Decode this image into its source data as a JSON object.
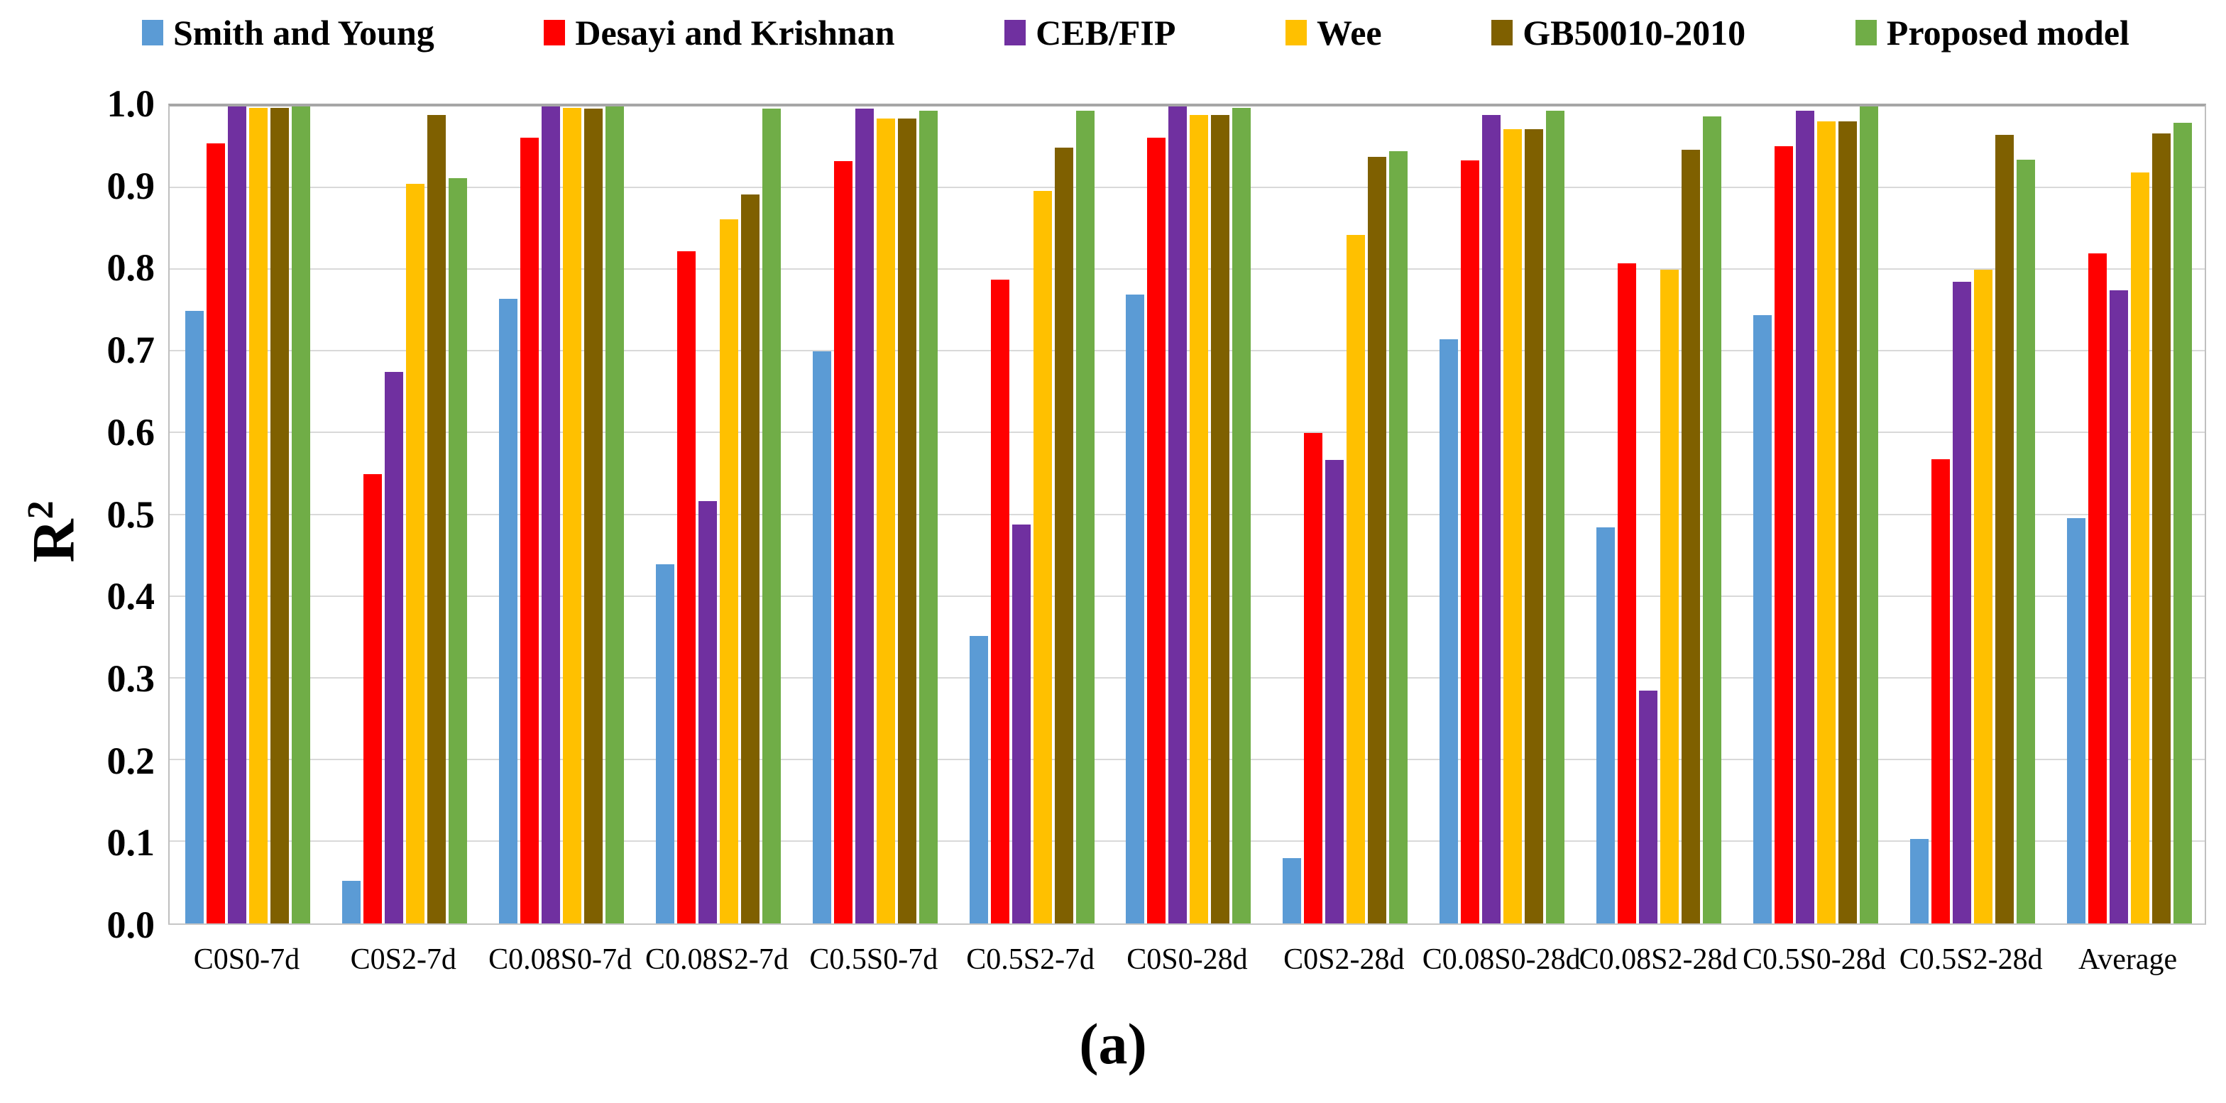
{
  "figure": {
    "caption": "(a)"
  },
  "chart_data": {
    "type": "bar",
    "title": "",
    "xlabel": "",
    "ylabel": "R²",
    "ylabel_base": "R",
    "ylabel_sup": "2",
    "ylim": [
      0.0,
      1.0
    ],
    "ytick_step": 0.1,
    "ytick_labels": [
      "0.0",
      "0.1",
      "0.2",
      "0.3",
      "0.4",
      "0.5",
      "0.6",
      "0.7",
      "0.8",
      "0.9",
      "1.0"
    ],
    "grid": true,
    "legend_position": "top",
    "categories": [
      "C0S0-7d",
      "C0S2-7d",
      "C0.08S0-7d",
      "C0.08S2-7d",
      "C0.5S0-7d",
      "C0.5S2-7d",
      "C0S0-28d",
      "C0S2-28d",
      "C0.08S0-28d",
      "C0.08S2-28d",
      "C0.5S0-28d",
      "C0.5S2-28d",
      "Average"
    ],
    "series": [
      {
        "name": "Smith and Young",
        "color": "#5B9BD5",
        "values": [
          0.75,
          0.052,
          0.765,
          0.44,
          0.7,
          0.352,
          0.77,
          0.08,
          0.715,
          0.485,
          0.745,
          0.103,
          0.496
        ]
      },
      {
        "name": "Desayi and Krishnan",
        "color": "#FF0000",
        "values": [
          0.955,
          0.55,
          0.962,
          0.823,
          0.933,
          0.788,
          0.962,
          0.6,
          0.934,
          0.808,
          0.951,
          0.568,
          0.82
        ]
      },
      {
        "name": "CEB/FIP",
        "color": "#7030A0",
        "values": [
          1.0,
          0.675,
          1.0,
          0.517,
          0.997,
          0.488,
          1.0,
          0.567,
          0.99,
          0.285,
          0.995,
          0.785,
          0.775
        ]
      },
      {
        "name": "Wee",
        "color": "#FFC000",
        "values": [
          0.998,
          0.905,
          0.998,
          0.862,
          0.985,
          0.897,
          0.99,
          0.843,
          0.972,
          0.8,
          0.982,
          0.8,
          0.919
        ]
      },
      {
        "name": "GB50010-2010",
        "color": "#7F6000",
        "values": [
          0.998,
          0.99,
          0.997,
          0.892,
          0.985,
          0.95,
          0.99,
          0.938,
          0.972,
          0.947,
          0.982,
          0.965,
          0.967
        ]
      },
      {
        "name": "Proposed model",
        "color": "#70AD47",
        "values": [
          1.0,
          0.912,
          1.0,
          0.997,
          0.995,
          0.995,
          0.998,
          0.945,
          0.995,
          0.988,
          1.0,
          0.935,
          0.98
        ]
      }
    ]
  }
}
